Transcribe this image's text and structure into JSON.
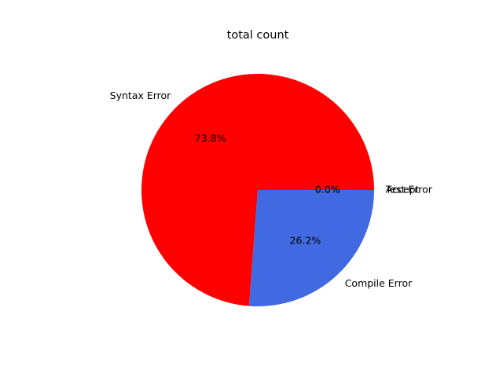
{
  "chart_data": {
    "type": "pie",
    "title": "total count",
    "slices": [
      {
        "label": "Accept",
        "value": 0.0,
        "pct_label": "0.0%",
        "color": "#ff0000"
      },
      {
        "label": "Syntax Error",
        "value": 73.8,
        "pct_label": "73.8%",
        "color": "#ff0000"
      },
      {
        "label": "Compile Error",
        "value": 26.2,
        "pct_label": "26.2%",
        "color": "#4169e1"
      },
      {
        "label": "Test Error",
        "value": 0.0,
        "pct_label": "0.0%",
        "color": "#008000"
      }
    ],
    "start_angle": 0,
    "direction": "counterclockwise",
    "legend": "none"
  }
}
